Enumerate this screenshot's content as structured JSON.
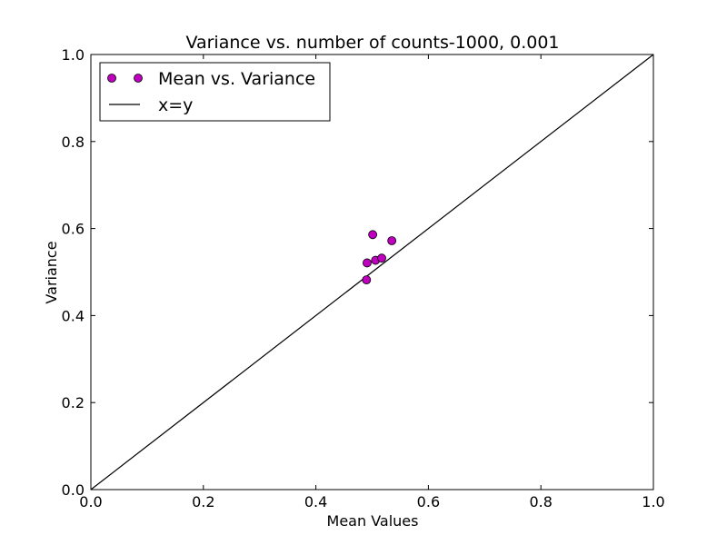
{
  "chart_data": {
    "type": "scatter",
    "title": "Variance vs. number of counts-1000, 0.001",
    "xlabel": "Mean Values",
    "ylabel": "Variance",
    "xlim": [
      0.0,
      1.0
    ],
    "ylim": [
      0.0,
      1.0
    ],
    "x_ticks": [
      "0.0",
      "0.2",
      "0.4",
      "0.6",
      "0.8",
      "1.0"
    ],
    "y_ticks": [
      "0.0",
      "0.2",
      "0.4",
      "0.6",
      "0.8",
      "1.0"
    ],
    "grid": false,
    "legend_position": "top-left",
    "series": [
      {
        "name": "Mean vs. Variance",
        "kind": "scatter",
        "color": "#bf00bf",
        "points": [
          {
            "x": 0.49,
            "y": 0.482
          },
          {
            "x": 0.491,
            "y": 0.521
          },
          {
            "x": 0.501,
            "y": 0.586
          },
          {
            "x": 0.506,
            "y": 0.527
          },
          {
            "x": 0.517,
            "y": 0.532
          },
          {
            "x": 0.535,
            "y": 0.572
          }
        ]
      },
      {
        "name": "x=y",
        "kind": "line",
        "color": "#000000",
        "points": [
          {
            "x": 0.0,
            "y": 0.0
          },
          {
            "x": 1.0,
            "y": 1.0
          }
        ]
      }
    ]
  }
}
